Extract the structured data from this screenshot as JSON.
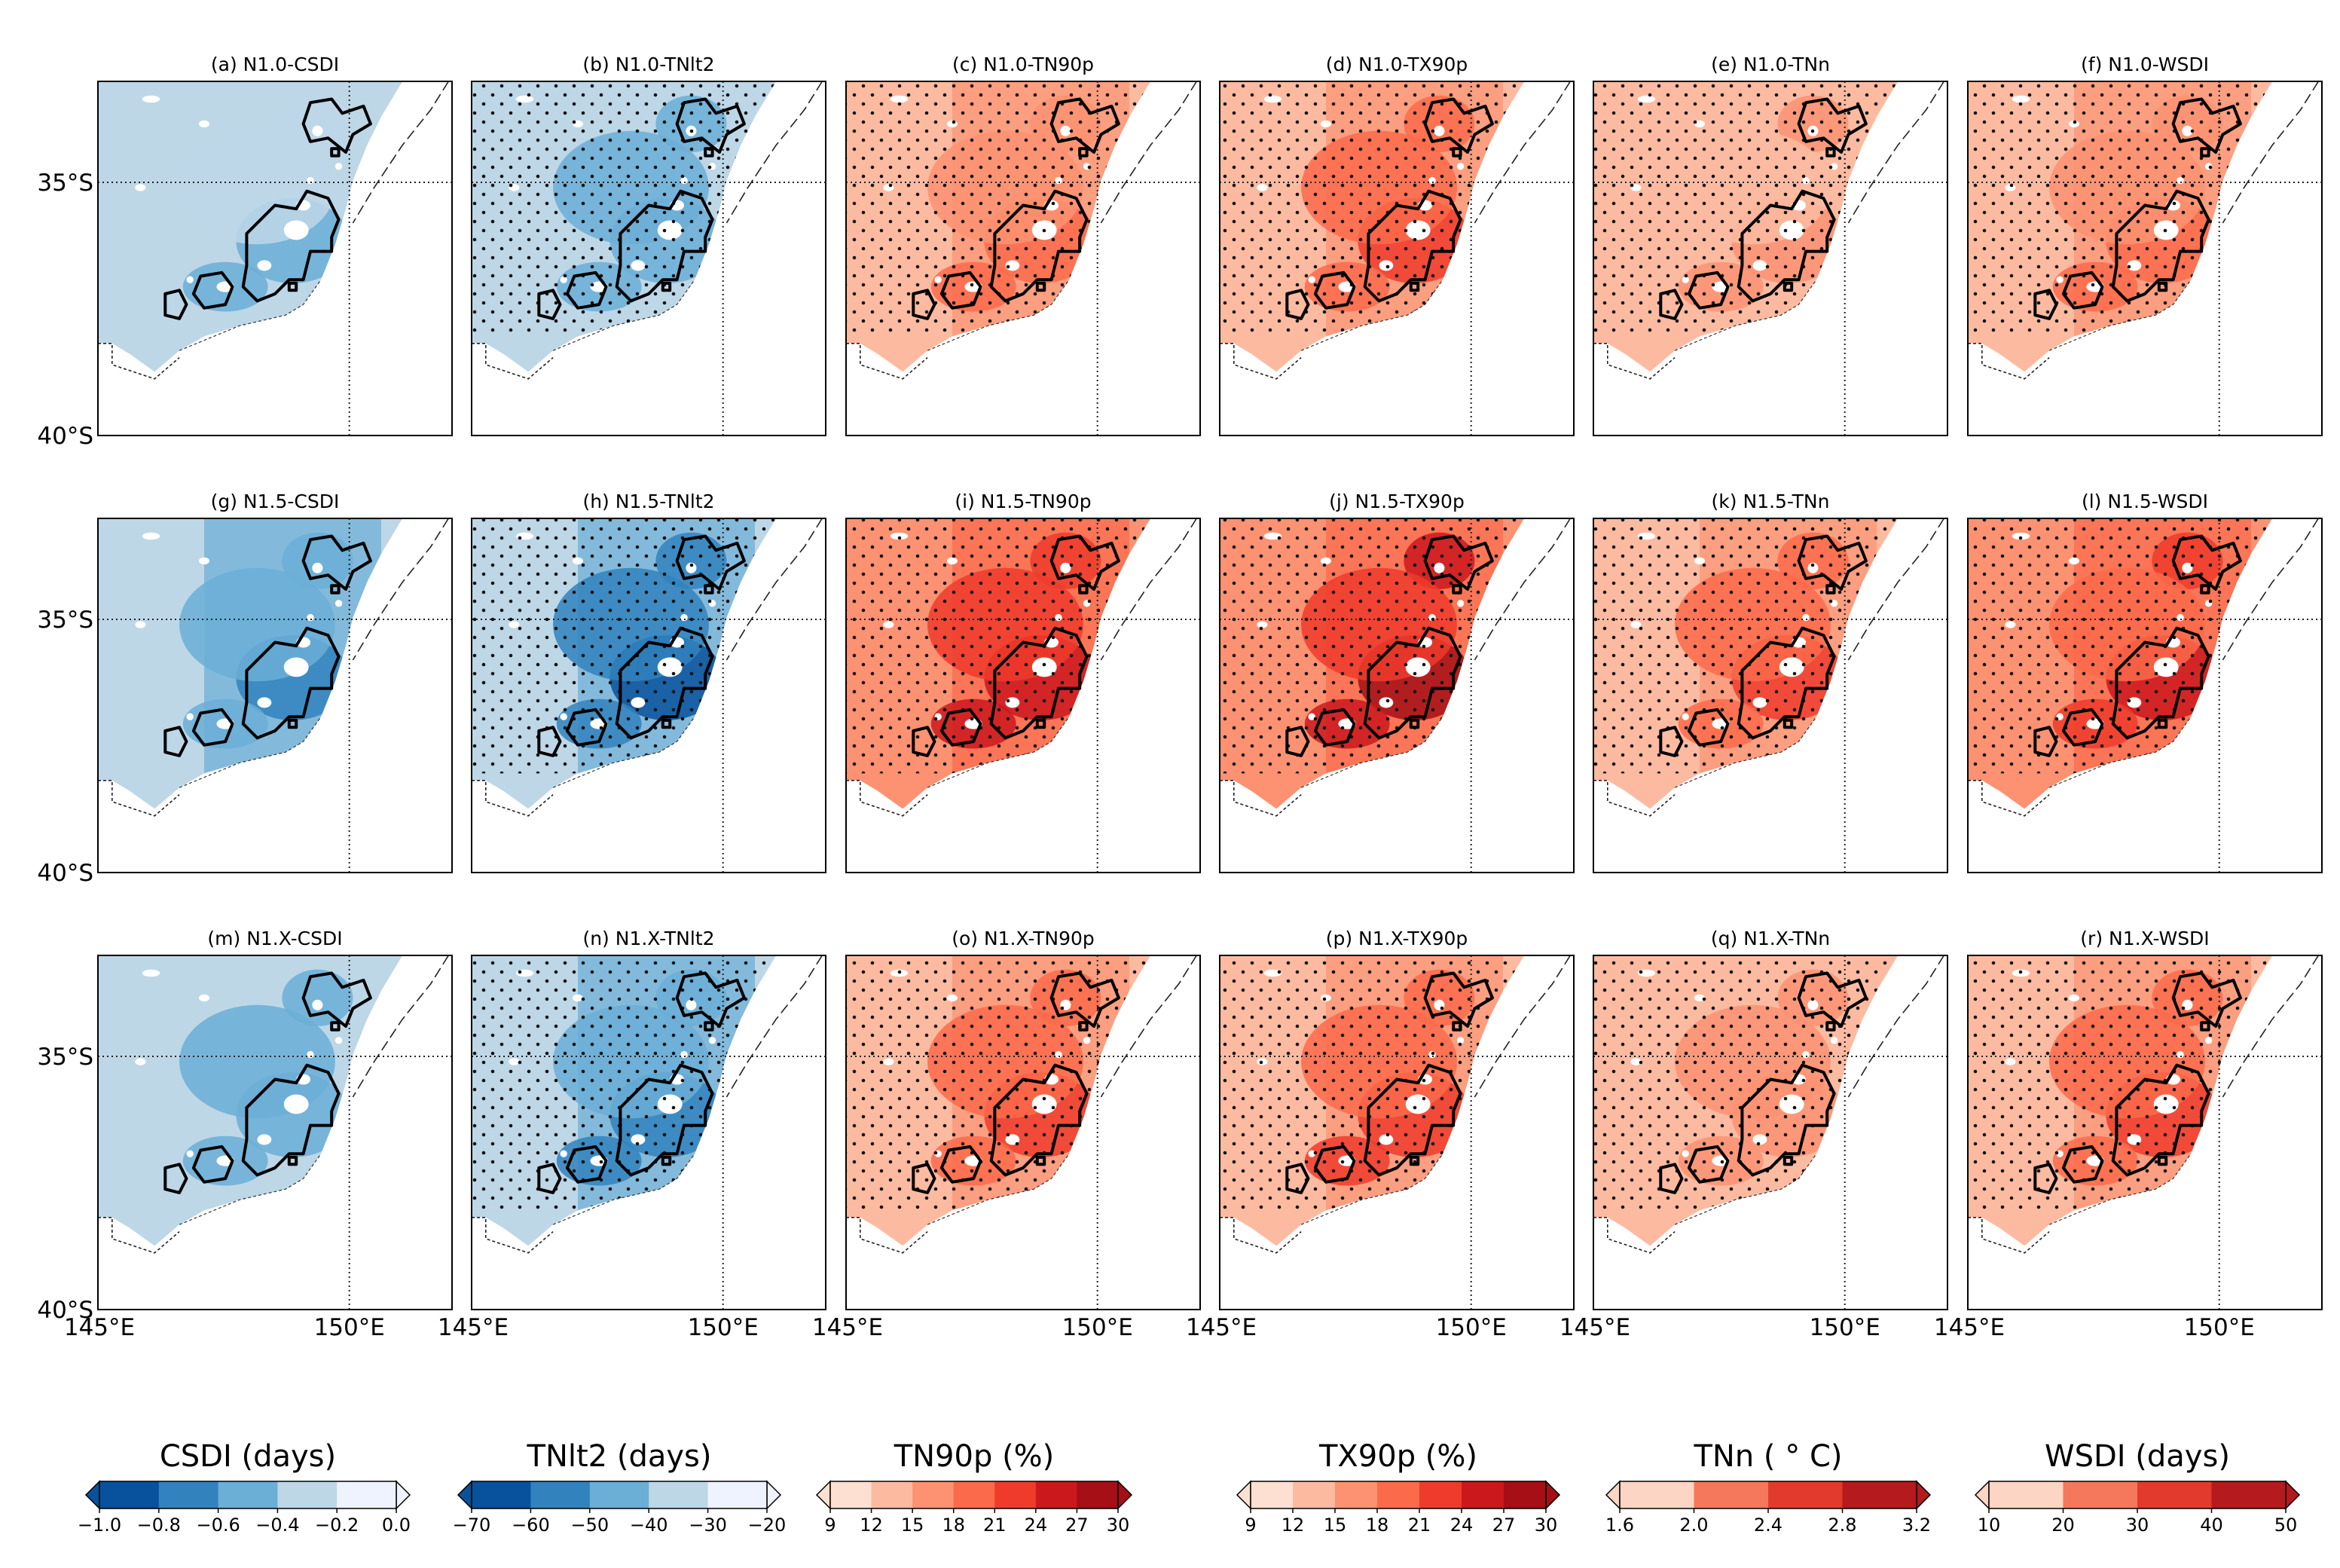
{
  "figure": {
    "panels": [
      {
        "id": "a",
        "title": "(a) N1.0-CSDI",
        "index": "CSDI",
        "intensity": 0.35,
        "stipple": false
      },
      {
        "id": "b",
        "title": "(b) N1.0-TNlt2",
        "index": "TNlt2",
        "intensity": 0.45,
        "stipple": true
      },
      {
        "id": "c",
        "title": "(c) N1.0-TN90p",
        "index": "TN90p",
        "intensity": 0.35,
        "stipple": true
      },
      {
        "id": "d",
        "title": "(d) N1.0-TX90p",
        "index": "TX90p",
        "intensity": 0.45,
        "stipple": true
      },
      {
        "id": "e",
        "title": "(e) N1.0-TNn",
        "index": "TNn",
        "intensity": 0.25,
        "stipple": true
      },
      {
        "id": "f",
        "title": "(f) N1.0-WSDI",
        "index": "WSDI",
        "intensity": 0.35,
        "stipple": true
      },
      {
        "id": "g",
        "title": "(g) N1.5-CSDI",
        "index": "CSDI",
        "intensity": 0.5,
        "stipple": false
      },
      {
        "id": "h",
        "title": "(h) N1.5-TNlt2",
        "index": "TNlt2",
        "intensity": 0.7,
        "stipple": true
      },
      {
        "id": "i",
        "title": "(i) N1.5-TN90p",
        "index": "TN90p",
        "intensity": 0.65,
        "stipple": true
      },
      {
        "id": "j",
        "title": "(j) N1.5-TX90p",
        "index": "TX90p",
        "intensity": 0.75,
        "stipple": true
      },
      {
        "id": "k",
        "title": "(k) N1.5-TNn",
        "index": "TNn",
        "intensity": 0.45,
        "stipple": true
      },
      {
        "id": "l",
        "title": "(l) N1.5-WSDI",
        "index": "WSDI",
        "intensity": 0.6,
        "stipple": true
      },
      {
        "id": "m",
        "title": "(m) N1.X-CSDI",
        "index": "CSDI",
        "intensity": 0.4,
        "stipple": false
      },
      {
        "id": "n",
        "title": "(n) N1.X-TNlt2",
        "index": "TNlt2",
        "intensity": 0.55,
        "stipple": true
      },
      {
        "id": "o",
        "title": "(o) N1.X-TN90p",
        "index": "TN90p",
        "intensity": 0.45,
        "stipple": true
      },
      {
        "id": "p",
        "title": "(p) N1.X-TX90p",
        "index": "TX90p",
        "intensity": 0.55,
        "stipple": true
      },
      {
        "id": "q",
        "title": "(q) N1.X-TNn",
        "index": "TNn",
        "intensity": 0.3,
        "stipple": true
      },
      {
        "id": "r",
        "title": "(r) N1.X-WSDI",
        "index": "WSDI",
        "intensity": 0.45,
        "stipple": true
      }
    ],
    "lat_labels": [
      "35°S",
      "40°S"
    ],
    "lon_labels": [
      "145°E",
      "150°E"
    ],
    "colorbars": [
      {
        "title": "CSDI (days)",
        "ticks": [
          "−1.0",
          "−0.8",
          "−0.6",
          "−0.4",
          "−0.2",
          "0.0"
        ],
        "colors": [
          "#08519c",
          "#3182bd",
          "#6baed6",
          "#bdd7e7",
          "#eff3ff"
        ]
      },
      {
        "title": "TNlt2 (days)",
        "ticks": [
          "−70",
          "−60",
          "−50",
          "−40",
          "−30",
          "−20"
        ],
        "colors": [
          "#08519c",
          "#3182bd",
          "#6baed6",
          "#bdd7e7",
          "#eff3ff"
        ]
      },
      {
        "title": "TN90p (%)",
        "ticks": [
          "9",
          "12",
          "15",
          "18",
          "21",
          "24",
          "27",
          "30"
        ],
        "colors": [
          "#fee0d2",
          "#fcbba1",
          "#fc9272",
          "#fb6a4a",
          "#ef3b2c",
          "#cb181d",
          "#a50f15"
        ]
      },
      {
        "title": "TX90p (%)",
        "ticks": [
          "9",
          "12",
          "15",
          "18",
          "21",
          "24",
          "27",
          "30"
        ],
        "colors": [
          "#fee0d2",
          "#fcbba1",
          "#fc9272",
          "#fb6a4a",
          "#ef3b2c",
          "#cb181d",
          "#a50f15"
        ]
      },
      {
        "title": "TNn ( ° C)",
        "ticks": [
          "1.6",
          "2.0",
          "2.4",
          "2.8",
          "3.2"
        ],
        "colors": [
          "#fdd5c4",
          "#f5785c",
          "#e33a2e",
          "#b51a1c"
        ]
      },
      {
        "title": "WSDI (days)",
        "ticks": [
          "10",
          "20",
          "30",
          "40",
          "50"
        ],
        "colors": [
          "#fdd5c4",
          "#f5785c",
          "#e33a2e",
          "#b51a1c"
        ]
      }
    ],
    "palettes": {
      "blue": [
        "#eff3ff",
        "#bdd7e7",
        "#6baed6",
        "#3182bd",
        "#08519c"
      ],
      "red": [
        "#fee0d2",
        "#fcbba1",
        "#fc9272",
        "#fb6a4a",
        "#ef3b2c",
        "#cb181d",
        "#a50f15"
      ]
    }
  }
}
